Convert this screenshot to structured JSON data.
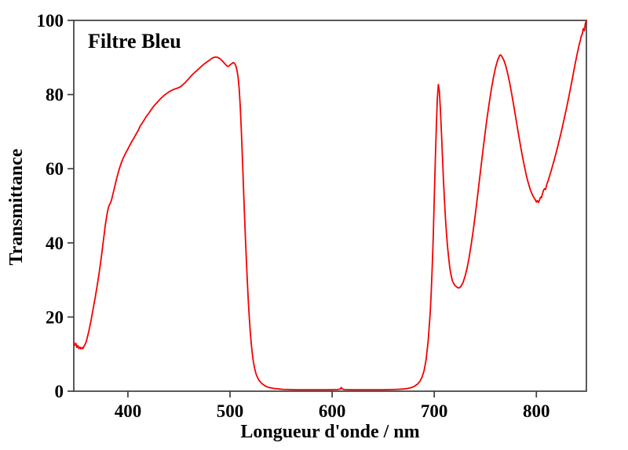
{
  "chart_data": {
    "type": "line",
    "title": "Filtre Bleu",
    "xlabel": "Longueur d'onde / nm",
    "ylabel": "Transmittance",
    "xlim": [
      347,
      849
    ],
    "ylim": [
      0,
      100
    ],
    "x_ticks": [
      400,
      500,
      600,
      700,
      800
    ],
    "y_ticks": [
      0,
      20,
      40,
      60,
      80,
      100
    ],
    "grid": false,
    "legend": "none",
    "line_color": "#f40000",
    "frame_color": "#3d3d3d",
    "series": [
      {
        "name": "transmittance-spectrum",
        "points": [
          [
            347,
            13.2
          ],
          [
            348,
            12.4
          ],
          [
            349,
            12.9
          ],
          [
            350,
            11.8
          ],
          [
            351,
            12.3
          ],
          [
            352,
            11.5
          ],
          [
            353,
            11.9
          ],
          [
            354,
            11.4
          ],
          [
            355,
            11.8
          ],
          [
            356,
            11.5
          ],
          [
            357,
            12.1
          ],
          [
            358,
            12.6
          ],
          [
            359,
            13.2
          ],
          [
            360,
            14.2
          ],
          [
            362,
            16.5
          ],
          [
            364,
            19.2
          ],
          [
            366,
            22.3
          ],
          [
            368,
            25.3
          ],
          [
            370,
            28.6
          ],
          [
            372,
            32.2
          ],
          [
            374,
            36.2
          ],
          [
            376,
            40.6
          ],
          [
            378,
            45.0
          ],
          [
            380,
            48.4
          ],
          [
            381,
            49.6
          ],
          [
            382,
            50.3
          ],
          [
            383,
            50.8
          ],
          [
            384,
            51.6
          ],
          [
            386,
            53.9
          ],
          [
            388,
            56.2
          ],
          [
            390,
            58.4
          ],
          [
            392,
            60.3
          ],
          [
            394,
            61.9
          ],
          [
            396,
            63.2
          ],
          [
            398,
            64.3
          ],
          [
            400,
            65.3
          ],
          [
            402,
            66.4
          ],
          [
            404,
            67.4
          ],
          [
            406,
            68.3
          ],
          [
            408,
            69.3
          ],
          [
            410,
            70.3
          ],
          [
            412,
            71.5
          ],
          [
            414,
            72.3
          ],
          [
            416,
            73.2
          ],
          [
            418,
            74.1
          ],
          [
            420,
            74.8
          ],
          [
            422,
            75.6
          ],
          [
            424,
            76.4
          ],
          [
            426,
            77.1
          ],
          [
            428,
            77.7
          ],
          [
            430,
            78.3
          ],
          [
            432,
            78.9
          ],
          [
            434,
            79.4
          ],
          [
            436,
            79.9
          ],
          [
            438,
            80.3
          ],
          [
            440,
            80.7
          ],
          [
            442,
            81.0
          ],
          [
            444,
            81.3
          ],
          [
            446,
            81.5
          ],
          [
            448,
            81.7
          ],
          [
            450,
            81.9
          ],
          [
            452,
            82.2
          ],
          [
            454,
            82.7
          ],
          [
            456,
            83.2
          ],
          [
            458,
            83.8
          ],
          [
            460,
            84.4
          ],
          [
            462,
            85.0
          ],
          [
            464,
            85.6
          ],
          [
            466,
            86.1
          ],
          [
            468,
            86.6
          ],
          [
            470,
            87.1
          ],
          [
            472,
            87.6
          ],
          [
            474,
            88.1
          ],
          [
            476,
            88.5
          ],
          [
            478,
            88.9
          ],
          [
            480,
            89.3
          ],
          [
            482,
            89.7
          ],
          [
            484,
            90.0
          ],
          [
            486,
            90.1
          ],
          [
            488,
            90.0
          ],
          [
            490,
            89.7
          ],
          [
            492,
            89.2
          ],
          [
            494,
            88.6
          ],
          [
            496,
            88.0
          ],
          [
            497,
            87.7
          ],
          [
            498,
            87.6
          ],
          [
            499,
            87.7
          ],
          [
            500,
            88.0
          ],
          [
            502,
            88.4
          ],
          [
            503,
            88.6
          ],
          [
            504,
            88.5
          ],
          [
            505,
            88.2
          ],
          [
            506,
            87.5
          ],
          [
            507,
            86.3
          ],
          [
            508,
            84.5
          ],
          [
            509,
            81.5
          ],
          [
            510,
            77.0
          ],
          [
            511,
            71.0
          ],
          [
            512,
            64.0
          ],
          [
            513,
            56.5
          ],
          [
            514,
            49.0
          ],
          [
            515,
            42.0
          ],
          [
            516,
            35.5
          ],
          [
            517,
            29.5
          ],
          [
            518,
            24.0
          ],
          [
            519,
            19.5
          ],
          [
            520,
            15.5
          ],
          [
            521,
            12.3
          ],
          [
            522,
            9.8
          ],
          [
            523,
            7.8
          ],
          [
            524,
            6.3
          ],
          [
            525,
            5.2
          ],
          [
            526,
            4.3
          ],
          [
            528,
            3.1
          ],
          [
            530,
            2.4
          ],
          [
            532,
            1.9
          ],
          [
            534,
            1.5
          ],
          [
            536,
            1.2
          ],
          [
            538,
            1.0
          ],
          [
            540,
            0.9
          ],
          [
            544,
            0.7
          ],
          [
            548,
            0.6
          ],
          [
            552,
            0.5
          ],
          [
            558,
            0.45
          ],
          [
            565,
            0.4
          ],
          [
            575,
            0.4
          ],
          [
            585,
            0.4
          ],
          [
            595,
            0.4
          ],
          [
            605,
            0.45
          ],
          [
            608,
            0.6
          ],
          [
            609,
            1.0
          ],
          [
            610,
            0.6
          ],
          [
            612,
            0.45
          ],
          [
            620,
            0.4
          ],
          [
            630,
            0.4
          ],
          [
            640,
            0.4
          ],
          [
            650,
            0.4
          ],
          [
            658,
            0.45
          ],
          [
            664,
            0.5
          ],
          [
            670,
            0.6
          ],
          [
            674,
            0.75
          ],
          [
            678,
            1.0
          ],
          [
            681,
            1.4
          ],
          [
            684,
            2.0
          ],
          [
            686,
            2.7
          ],
          [
            688,
            3.8
          ],
          [
            690,
            5.5
          ],
          [
            692,
            8.5
          ],
          [
            694,
            13.5
          ],
          [
            696,
            21.0
          ],
          [
            697,
            26.5
          ],
          [
            698,
            33.5
          ],
          [
            699,
            41.5
          ],
          [
            700,
            52.0
          ],
          [
            701,
            62.0
          ],
          [
            702,
            71.0
          ],
          [
            703,
            79.0
          ],
          [
            704,
            82.7
          ],
          [
            705,
            80.9
          ],
          [
            706,
            76.0
          ],
          [
            707,
            70.0
          ],
          [
            708,
            63.5
          ],
          [
            709,
            57.0
          ],
          [
            710,
            51.5
          ],
          [
            711,
            46.5
          ],
          [
            712,
            42.5
          ],
          [
            713,
            39.0
          ],
          [
            714,
            36.3
          ],
          [
            715,
            33.8
          ],
          [
            716,
            32.0
          ],
          [
            717,
            30.6
          ],
          [
            718,
            29.6
          ],
          [
            720,
            28.6
          ],
          [
            722,
            28.1
          ],
          [
            724,
            27.8
          ],
          [
            726,
            28.2
          ],
          [
            728,
            29.2
          ],
          [
            730,
            30.8
          ],
          [
            732,
            33.0
          ],
          [
            734,
            35.8
          ],
          [
            736,
            39.2
          ],
          [
            738,
            43.0
          ],
          [
            740,
            47.2
          ],
          [
            742,
            51.7
          ],
          [
            744,
            56.3
          ],
          [
            746,
            61.0
          ],
          [
            748,
            65.6
          ],
          [
            750,
            70.0
          ],
          [
            752,
            74.2
          ],
          [
            754,
            78.0
          ],
          [
            756,
            81.5
          ],
          [
            758,
            84.6
          ],
          [
            760,
            87.2
          ],
          [
            762,
            89.2
          ],
          [
            764,
            90.5
          ],
          [
            765,
            90.7
          ],
          [
            766,
            90.4
          ],
          [
            768,
            89.4
          ],
          [
            770,
            87.8
          ],
          [
            772,
            85.6
          ],
          [
            774,
            83.0
          ],
          [
            776,
            80.0
          ],
          [
            778,
            76.8
          ],
          [
            780,
            73.5
          ],
          [
            782,
            70.2
          ],
          [
            784,
            67.0
          ],
          [
            786,
            63.9
          ],
          [
            788,
            61.0
          ],
          [
            790,
            58.4
          ],
          [
            792,
            56.2
          ],
          [
            794,
            54.4
          ],
          [
            796,
            53.0
          ],
          [
            798,
            52.0
          ],
          [
            799,
            51.6
          ],
          [
            800,
            51.0
          ],
          [
            801,
            51.4
          ],
          [
            802,
            50.9
          ],
          [
            803,
            51.5
          ],
          [
            804,
            52.3
          ],
          [
            805,
            52.2
          ],
          [
            806,
            53.3
          ],
          [
            807,
            54.2
          ],
          [
            808,
            54.6
          ],
          [
            809,
            54.4
          ],
          [
            810,
            55.6
          ],
          [
            812,
            57.2
          ],
          [
            814,
            59.0
          ],
          [
            816,
            60.9
          ],
          [
            818,
            62.9
          ],
          [
            820,
            65.0
          ],
          [
            822,
            67.2
          ],
          [
            824,
            69.5
          ],
          [
            826,
            71.9
          ],
          [
            828,
            74.4
          ],
          [
            830,
            77.0
          ],
          [
            832,
            79.7
          ],
          [
            834,
            82.5
          ],
          [
            836,
            85.4
          ],
          [
            838,
            88.3
          ],
          [
            840,
            91.0
          ],
          [
            842,
            93.5
          ],
          [
            843,
            94.5
          ],
          [
            844,
            95.8
          ],
          [
            845,
            96.4
          ],
          [
            846,
            97.8
          ],
          [
            847,
            97.2
          ],
          [
            848,
            99.2
          ],
          [
            849,
            100.0
          ]
        ]
      }
    ]
  }
}
